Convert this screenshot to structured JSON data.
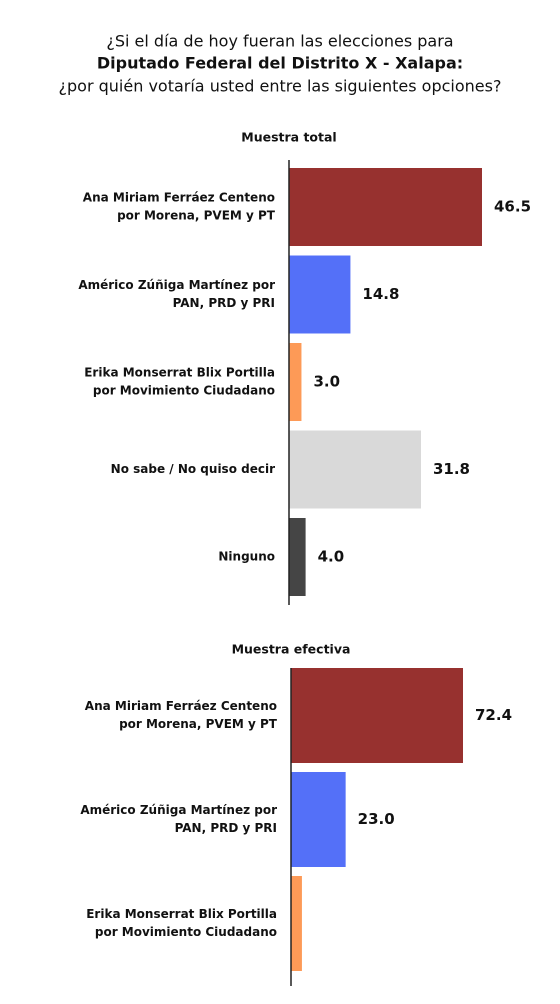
{
  "header": {
    "title_lines": [
      "¿Si el día de hoy fueran las elecciones para",
      "Diputado Federal del Distrito X - Xalapa:",
      "¿por quién votaría usted entre las siguientes opciones?"
    ]
  },
  "chart_data": [
    {
      "type": "hbar",
      "title": "Muestra total",
      "categories": [
        [
          "Ana Miriam Ferráez Centeno",
          "por Morena, PVEM y PT"
        ],
        [
          "Américo Zúñiga Martínez por",
          "PAN, PRD y PRI"
        ],
        [
          "Erika Monserrat Blix Portilla",
          "por Movimiento Ciudadano"
        ],
        [
          "No sabe / No quiso decir"
        ],
        [
          "Ninguno"
        ]
      ],
      "values": [
        46.5,
        14.8,
        3.0,
        31.8,
        4.0
      ],
      "value_labels": [
        "46.5",
        "14.8",
        "3.0",
        "31.8",
        "4.0"
      ],
      "colors": [
        "#97312f",
        "#5470f8",
        "#fd9a57",
        "#d9d9d9",
        "#454545"
      ]
    },
    {
      "type": "hbar",
      "title": "Muestra efectiva",
      "categories": [
        [
          "Ana Miriam Ferráez Centeno",
          "por Morena, PVEM y PT"
        ],
        [
          "Américo Zúñiga Martínez por",
          "PAN, PRD y PRI"
        ],
        [
          "Erika Monserrat Blix Portilla",
          "por Movimiento Ciudadano"
        ]
      ],
      "values": [
        72.4,
        23.0,
        4.6
      ],
      "value_labels": [
        "72.4",
        "23.0",
        null
      ],
      "colors": [
        "#97312f",
        "#5470f8",
        "#fd9a57"
      ]
    }
  ]
}
